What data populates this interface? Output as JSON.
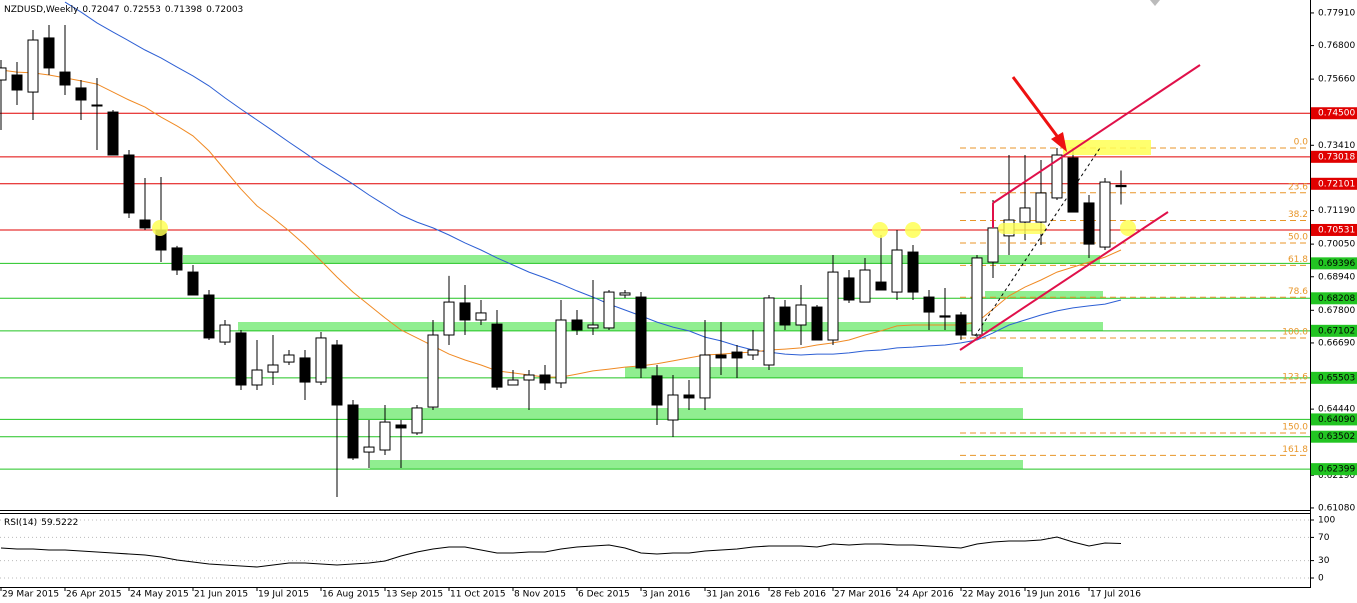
{
  "chart_data": [
    {
      "type": "candlestick",
      "title": "NZDUSD,Weekly",
      "categories": [
        "29 Mar 2015",
        null,
        null,
        null,
        "26 Apr 2015",
        null,
        null,
        null,
        "24 May 2015",
        null,
        null,
        null,
        "21 Jun 2015",
        null,
        null,
        null,
        "19 Jul 2015",
        null,
        null,
        null,
        "16 Aug 2015",
        null,
        null,
        null,
        "13 Sep 2015",
        null,
        null,
        null,
        "11 Oct 2015",
        null,
        null,
        null,
        "8 Nov 2015",
        null,
        null,
        null,
        "6 Dec 2015",
        null,
        null,
        null,
        "3 Jan 2016",
        null,
        null,
        null,
        "31 Jan 2016",
        null,
        null,
        null,
        "28 Feb 2016",
        null,
        null,
        null,
        "27 Mar 2016",
        null,
        null,
        null,
        "24 Apr 2016",
        null,
        null,
        null,
        "22 May 2016",
        null,
        null,
        null,
        "19 Jun 2016",
        null,
        null,
        null,
        "17 Jul 2016",
        null,
        null
      ],
      "open": [
        0.7563,
        0.758,
        0.7522,
        0.7706,
        0.759,
        0.7536,
        0.7478,
        0.7454,
        0.7308,
        0.7087,
        0.7053,
        0.6992,
        0.691,
        0.6832,
        0.6672,
        0.6703,
        0.6526,
        0.657,
        0.6604,
        0.6618,
        0.6536,
        0.6662,
        0.6458,
        0.6298,
        0.6305,
        0.639,
        0.6363,
        0.6451,
        0.6696,
        0.6805,
        0.6747,
        0.6733,
        0.6526,
        0.6543,
        0.656,
        0.6533,
        0.6747,
        0.672,
        0.672,
        0.6832,
        0.6825,
        0.6557,
        0.6407,
        0.6492,
        0.6482,
        0.6628,
        0.6638,
        0.6628,
        0.6594,
        0.6791,
        0.673,
        0.6791,
        0.6679,
        0.689,
        0.6808,
        0.6876,
        0.6842,
        0.6978,
        0.6825,
        0.6761,
        0.6764,
        0.6696,
        0.6944,
        0.7033,
        0.708,
        0.708,
        0.7162,
        0.7298,
        0.7145,
        0.6995,
        0.72047
      ],
      "high": [
        0.7631,
        0.7624,
        0.7733,
        0.775,
        0.775,
        0.7563,
        0.757,
        0.7461,
        0.7325,
        0.723,
        0.7233,
        0.6999,
        0.6934,
        0.6849,
        0.6747,
        0.6713,
        0.6679,
        0.6696,
        0.6645,
        0.6645,
        0.6706,
        0.6679,
        0.6475,
        0.6407,
        0.6458,
        0.6407,
        0.6458,
        0.6747,
        0.6897,
        0.6866,
        0.6815,
        0.6781,
        0.6577,
        0.6577,
        0.6594,
        0.6815,
        0.6781,
        0.6883,
        0.6849,
        0.6849,
        0.6842,
        0.6594,
        0.656,
        0.6543,
        0.6747,
        0.674,
        0.6662,
        0.6713,
        0.6832,
        0.6815,
        0.6866,
        0.6798,
        0.6968,
        0.6917,
        0.6958,
        0.7036,
        0.7053,
        0.7002,
        0.6849,
        0.6856,
        0.6774,
        0.6968,
        0.7155,
        0.7308,
        0.7308,
        0.7291,
        0.7332,
        0.7332,
        0.7172,
        0.723,
        0.72553
      ],
      "low": [
        0.7393,
        0.7478,
        0.7427,
        0.758,
        0.7512,
        0.7427,
        0.7325,
        0.7308,
        0.7094,
        0.7053,
        0.6944,
        0.69,
        0.6832,
        0.6679,
        0.6662,
        0.6509,
        0.6509,
        0.6526,
        0.6594,
        0.6475,
        0.6526,
        0.6145,
        0.6271,
        0.6244,
        0.6288,
        0.6244,
        0.6356,
        0.6441,
        0.6662,
        0.6696,
        0.673,
        0.6509,
        0.6526,
        0.6441,
        0.6509,
        0.6516,
        0.6696,
        0.6696,
        0.6713,
        0.6822,
        0.655,
        0.639,
        0.6349,
        0.6441,
        0.6441,
        0.656,
        0.655,
        0.6611,
        0.6577,
        0.6713,
        0.6662,
        0.6679,
        0.6662,
        0.6805,
        0.6815,
        0.6849,
        0.6815,
        0.6815,
        0.6713,
        0.6713,
        0.6679,
        0.6686,
        0.689,
        0.6968,
        0.7019,
        0.7002,
        0.7155,
        0.7114,
        0.6958,
        0.6985,
        0.71398
      ],
      "close": [
        0.7604,
        0.7529,
        0.7699,
        0.7604,
        0.7546,
        0.7495,
        0.7475,
        0.7308,
        0.7111,
        0.706,
        0.6985,
        0.6917,
        0.6832,
        0.6686,
        0.673,
        0.6526,
        0.6577,
        0.6594,
        0.6628,
        0.6536,
        0.6686,
        0.6458,
        0.6278,
        0.6315,
        0.64,
        0.638,
        0.6448,
        0.6696,
        0.6808,
        0.6747,
        0.6771,
        0.6519,
        0.6543,
        0.656,
        0.6533,
        0.6747,
        0.6713,
        0.673,
        0.6842,
        0.6839,
        0.6584,
        0.6458,
        0.6492,
        0.6482,
        0.6628,
        0.6618,
        0.6618,
        0.6645,
        0.6822,
        0.673,
        0.6798,
        0.6679,
        0.691,
        0.6815,
        0.6917,
        0.6849,
        0.6985,
        0.6842,
        0.6774,
        0.6757,
        0.6696,
        0.6958,
        0.706,
        0.7087,
        0.7128,
        0.7179,
        0.7308,
        0.7114,
        0.7005,
        0.7216,
        0.72003
      ],
      "up_color": "#ffffff",
      "down_color": "#000000",
      "series": [
        {
          "color": "#2d5fd4",
          "values": [
            null,
            null,
            null,
            null,
            0.7828,
            0.7794,
            0.7757,
            0.7726,
            0.7696,
            0.7665,
            0.7638,
            0.7607,
            0.7577,
            0.7543,
            0.7502,
            0.7464,
            0.7427,
            0.739,
            0.7352,
            0.7315,
            0.7277,
            0.7243,
            0.7209,
            0.7172,
            0.7138,
            0.7104,
            0.708,
            0.706,
            0.7036,
            0.7009,
            0.6985,
            0.6958,
            0.6934,
            0.691,
            0.689,
            0.6869,
            0.6846,
            0.6825,
            0.6801,
            0.6781,
            0.6761,
            0.674,
            0.6723,
            0.671,
            0.6689,
            0.6676,
            0.6659,
            0.6645,
            0.6638,
            0.6631,
            0.6628,
            0.6631,
            0.6631,
            0.6635,
            0.6642,
            0.6645,
            0.6652,
            0.6655,
            0.6659,
            0.6662,
            0.6669,
            0.6679,
            0.6703,
            0.673,
            0.6747,
            0.6764,
            0.6778,
            0.6788,
            0.6795,
            0.6801,
            0.6815
          ]
        },
        {
          "color": "#f08a24",
          "values": [
            0.7597,
            0.759,
            0.7587,
            0.758,
            0.757,
            0.756,
            0.7549,
            0.7522,
            0.7495,
            0.7471,
            0.7437,
            0.7407,
            0.7373,
            0.7322,
            0.7257,
            0.7192,
            0.7135,
            0.7094,
            0.705,
            0.7002,
            0.6948,
            0.6893,
            0.6842,
            0.6798,
            0.6754,
            0.6713,
            0.6686,
            0.6659,
            0.6631,
            0.6611,
            0.6594,
            0.6574,
            0.6567,
            0.656,
            0.6553,
            0.6553,
            0.6563,
            0.6574,
            0.658,
            0.6587,
            0.6591,
            0.6598,
            0.6608,
            0.6618,
            0.6628,
            0.6631,
            0.6635,
            0.6638,
            0.6645,
            0.6648,
            0.6652,
            0.6662,
            0.6669,
            0.6679,
            0.6696,
            0.671,
            0.6727,
            0.673,
            0.673,
            0.673,
            0.673,
            0.674,
            0.6784,
            0.6829,
            0.6859,
            0.6883,
            0.691,
            0.6927,
            0.6944,
            0.6961,
            0.6985
          ]
        }
      ],
      "ylim": [
        0.6101,
        0.7835
      ],
      "yticks": [
        {
          "value": 0.7791,
          "label": "0.77910"
        },
        {
          "value": 0.768,
          "label": "0.76800"
        },
        {
          "value": 0.7566,
          "label": "0.75660"
        },
        {
          "value": 0.7341,
          "label": "0.73410"
        },
        {
          "value": 0.7119,
          "label": "0.71190"
        },
        {
          "value": 0.7005,
          "label": "0.70050"
        },
        {
          "value": 0.6894,
          "label": "0.68940"
        },
        {
          "value": 0.678,
          "label": "0.67800"
        },
        {
          "value": 0.6669,
          "label": "0.66690"
        },
        {
          "value": 0.6444,
          "label": "0.64440"
        },
        {
          "value": 0.6219,
          "label": "0.62190"
        },
        {
          "value": 0.6108,
          "label": "0.61080"
        }
      ],
      "levels": [
        {
          "color": "#e00000",
          "text_color": "#ffffff",
          "ticks": [
            {
              "value": 0.745,
              "label": "0.74500"
            },
            {
              "value": 0.73018,
              "label": "0.73018"
            },
            {
              "value": 0.72101,
              "label": "0.72101"
            },
            {
              "value": 0.70531,
              "label": "0.70531"
            }
          ]
        },
        {
          "color": "#22c422",
          "text_color": "#000000",
          "ticks": [
            {
              "value": 0.69396,
              "label": "0.69396"
            },
            {
              "value": 0.68208,
              "label": "0.68208"
            },
            {
              "value": 0.67102,
              "label": "0.67102"
            },
            {
              "value": 0.65503,
              "label": "0.65503"
            },
            {
              "value": 0.6409,
              "label": "0.64090"
            },
            {
              "value": 0.63502,
              "label": "0.63502"
            },
            {
              "value": 0.62399,
              "label": "0.62399"
            }
          ]
        }
      ],
      "fib": {
        "color": "#e8962a",
        "high": 0.7332,
        "low": 0.6686,
        "levels": [
          {
            "value": 0,
            "label": "0.0"
          },
          23.6,
          38.2,
          {
            "value": 50,
            "label": "50.0"
          },
          61.8,
          78.6,
          {
            "value": 100,
            "label": "100.0"
          },
          123.6,
          {
            "value": 150,
            "label": "150.0"
          },
          161.8
        ]
      }
    },
    {
      "type": "line",
      "title": "RSI(14)",
      "series": [
        {
          "color": "#000000",
          "values": [
            51.7,
            50.0,
            50.0,
            48.3,
            48.3,
            46.6,
            44.8,
            43.1,
            41.4,
            39.7,
            36.2,
            31.0,
            27.6,
            24.1,
            22.4,
            20.7,
            19.0,
            22.4,
            25.9,
            25.9,
            24.1,
            22.4,
            24.1,
            25.9,
            29.3,
            37.9,
            44.8,
            50.0,
            53.4,
            53.4,
            48.3,
            43.1,
            43.1,
            44.8,
            44.8,
            50.0,
            53.4,
            55.2,
            56.9,
            51.7,
            43.1,
            41.4,
            43.1,
            43.1,
            46.6,
            48.3,
            50.0,
            53.4,
            55.2,
            55.2,
            55.2,
            53.4,
            58.6,
            56.9,
            58.6,
            58.6,
            56.9,
            56.9,
            55.2,
            53.4,
            51.7,
            58.6,
            62.1,
            63.8,
            63.8,
            65.5,
            70.7,
            62.1,
            55.2,
            60.3,
            59.5222
          ]
        }
      ],
      "ylim": [
        0,
        100
      ],
      "yticks": [
        100,
        70,
        30,
        0
      ],
      "grid": true
    }
  ]
}
